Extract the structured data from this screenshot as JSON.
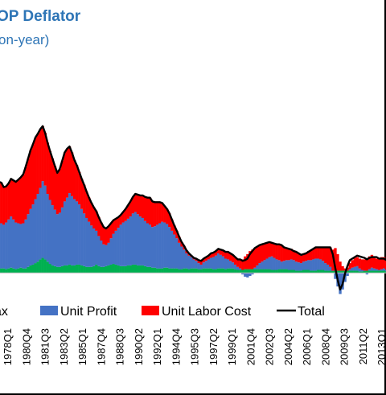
{
  "chart_data": {
    "type": "bar",
    "title": "OP Deflator",
    "subtitle": "on-year)",
    "xlabel": "",
    "ylabel": "",
    "stacked": true,
    "start_quarter": "1977Q1",
    "tick_labels": [
      "1978Q1",
      "1980Q4",
      "1981Q3",
      "1983Q2",
      "1985Q1",
      "1987Q4",
      "1988Q3",
      "1990Q2",
      "1992Q1",
      "1994Q4",
      "1995Q3",
      "1997Q2",
      "1999Q1",
      "2001Q4",
      "2002Q3",
      "2004Q2",
      "2006Q1",
      "2008Q4",
      "2009Q3",
      "2011Q2",
      "2013Q1"
    ],
    "legend": {
      "placement": "bottom",
      "entries": [
        {
          "label": "Tax",
          "color": "#00b050",
          "kind": "bar"
        },
        {
          "label": "Unit Profit",
          "color": "#4472c4",
          "kind": "bar"
        },
        {
          "label": "Unit Labor Cost",
          "color": "#ff0000",
          "kind": "bar"
        },
        {
          "label": "Total",
          "color": "#000000",
          "kind": "line"
        }
      ]
    },
    "series": [
      {
        "name": "Tax",
        "color": "#00b050",
        "values": [
          0.4,
          0.5,
          0.6,
          0.6,
          0.5,
          0.6,
          0.7,
          0.6,
          0.5,
          0.6,
          0.7,
          0.6,
          0.6,
          0.8,
          1.0,
          1.1,
          1.3,
          1.5,
          1.8,
          2.0,
          1.8,
          1.5,
          1.2,
          1.0,
          0.9,
          0.8,
          0.8,
          0.9,
          1.0,
          1.0,
          1.1,
          1.0,
          1.0,
          1.1,
          1.1,
          1.0,
          0.9,
          0.8,
          0.8,
          0.8,
          0.9,
          1.1,
          0.9,
          0.8,
          0.8,
          0.9,
          1.0,
          1.1,
          1.2,
          1.1,
          1.0,
          0.9,
          0.9,
          0.9,
          1.0,
          1.0,
          1.1,
          1.1,
          1.0,
          1.0,
          1.0,
          0.9,
          0.8,
          0.8,
          0.7,
          0.7,
          0.6,
          0.6,
          0.6,
          0.7,
          0.7,
          0.6,
          0.6,
          0.6,
          0.6,
          0.5,
          0.5,
          0.6,
          0.6,
          0.5,
          0.6,
          0.6,
          0.6,
          0.5,
          0.5,
          0.6,
          0.6,
          0.6,
          0.6,
          0.5,
          0.5,
          0.6,
          0.6,
          0.6,
          0.5,
          0.6,
          0.6,
          0.6,
          0.5,
          0.4,
          0.4,
          0.4,
          0.5,
          0.5,
          0.5,
          0.5,
          0.5,
          0.5,
          0.5,
          0.5,
          0.5,
          0.5,
          0.5,
          0.4,
          0.4,
          0.4,
          0.5,
          0.5,
          0.5,
          0.5,
          0.4,
          0.4,
          0.4,
          0.3,
          0.3,
          0.3,
          0.4,
          0.4,
          0.4,
          0.3,
          0.3,
          0.3,
          0.4,
          0.4,
          0.4,
          0.3,
          0.3,
          0.3,
          0.3,
          0.3,
          0.3,
          0.3,
          0.3,
          0.3,
          0.3,
          0.3,
          0.3,
          0.3,
          0.3,
          0.2,
          0.2,
          0.3,
          0.3,
          0.3,
          0.3,
          0.3,
          0.3,
          0.3,
          0.3,
          0.3,
          0.2
        ]
      },
      {
        "name": "Unit Profit",
        "color": "#4472c4",
        "values": [
          5.5,
          5.8,
          6.0,
          5.8,
          6.2,
          6.5,
          6.8,
          6.5,
          6.2,
          6.0,
          5.8,
          6.0,
          6.5,
          7.0,
          7.5,
          8.0,
          8.5,
          9.0,
          9.5,
          10.2,
          9.8,
          9.0,
          8.5,
          8.0,
          7.5,
          7.0,
          7.2,
          7.8,
          8.5,
          9.0,
          9.5,
          9.2,
          8.8,
          8.4,
          8.0,
          7.5,
          7.0,
          6.5,
          6.0,
          5.5,
          5.0,
          4.5,
          4.0,
          3.5,
          3.0,
          2.8,
          3.0,
          3.5,
          4.0,
          4.5,
          5.0,
          5.5,
          5.8,
          6.0,
          6.2,
          6.5,
          6.8,
          7.0,
          6.8,
          6.5,
          6.3,
          6.0,
          5.8,
          5.6,
          5.4,
          5.5,
          5.8,
          6.0,
          6.2,
          6.0,
          5.8,
          5.5,
          5.0,
          4.5,
          4.0,
          3.5,
          3.0,
          2.5,
          2.0,
          1.8,
          1.5,
          1.2,
          1.0,
          0.8,
          0.6,
          0.8,
          1.0,
          1.2,
          1.4,
          1.6,
          1.8,
          2.0,
          1.8,
          1.6,
          1.4,
          1.2,
          1.0,
          0.8,
          0.6,
          0.4,
          0.2,
          -0.2,
          -0.5,
          -0.6,
          -0.4,
          -0.2,
          0.2,
          0.5,
          0.8,
          1.0,
          1.2,
          1.4,
          1.6,
          1.8,
          1.6,
          1.4,
          1.2,
          1.0,
          1.1,
          1.2,
          1.3,
          1.4,
          1.3,
          1.2,
          1.1,
          1.0,
          1.1,
          1.2,
          1.3,
          1.4,
          1.5,
          1.6,
          1.5,
          1.4,
          1.2,
          1.0,
          0.8,
          0.5,
          0.0,
          -0.8,
          -1.8,
          -2.8,
          -2.2,
          -1.2,
          -0.4,
          0.2,
          0.4,
          0.5,
          0.6,
          0.4,
          0.2,
          0.0,
          -0.2,
          0.2,
          0.4,
          0.3,
          0.2,
          0.1,
          0.2,
          0.3,
          0.2
        ]
      },
      {
        "name": "Unit Labor Cost",
        "color": "#ff0000",
        "values": [
          6.0,
          5.8,
          5.4,
          5.0,
          4.8,
          4.8,
          5.0,
          5.2,
          5.4,
          5.8,
          6.2,
          6.5,
          7.0,
          7.4,
          7.8,
          8.0,
          8.2,
          8.0,
          7.8,
          7.3,
          7.0,
          6.8,
          6.5,
          6.2,
          5.8,
          5.5,
          5.8,
          6.2,
          6.5,
          6.5,
          6.2,
          5.8,
          5.2,
          4.8,
          4.3,
          4.0,
          3.8,
          3.5,
          3.2,
          3.0,
          2.8,
          2.6,
          2.5,
          2.4,
          2.3,
          2.2,
          2.2,
          2.0,
          1.8,
          1.6,
          1.4,
          1.3,
          1.4,
          1.6,
          1.8,
          2.0,
          2.2,
          2.4,
          2.6,
          2.8,
          3.0,
          3.2,
          3.4,
          3.6,
          3.4,
          3.2,
          3.0,
          2.8,
          2.5,
          2.2,
          2.0,
          1.8,
          1.5,
          1.2,
          1.0,
          0.8,
          0.6,
          0.5,
          0.4,
          0.3,
          0.2,
          0.2,
          0.3,
          0.4,
          0.5,
          0.5,
          0.5,
          0.5,
          0.6,
          0.6,
          0.6,
          0.6,
          0.7,
          0.8,
          0.9,
          1.0,
          1.0,
          1.0,
          1.0,
          1.0,
          1.2,
          1.4,
          1.7,
          2.0,
          2.4,
          2.6,
          2.6,
          2.5,
          2.4,
          2.3,
          2.2,
          2.1,
          2.0,
          1.8,
          1.9,
          2.0,
          2.1,
          2.2,
          1.8,
          1.6,
          1.5,
          1.4,
          1.3,
          1.2,
          1.1,
          1.0,
          1.0,
          1.1,
          1.2,
          1.3,
          1.4,
          1.5,
          1.6,
          1.7,
          1.9,
          2.1,
          2.4,
          2.6,
          2.8,
          3.0,
          2.2,
          1.2,
          0.6,
          0.3,
          0.4,
          0.8,
          1.0,
          1.2,
          1.2,
          1.3,
          1.4,
          1.5,
          1.6,
          1.7,
          1.7,
          1.5,
          1.4,
          1.5,
          1.6,
          1.5,
          1.4,
          1.3,
          1.2
        ]
      },
      {
        "name": "Total",
        "color": "#000000",
        "values": [
          11.9,
          12.1,
          12.0,
          11.4,
          11.5,
          11.9,
          12.5,
          12.3,
          12.1,
          12.4,
          12.7,
          13.1,
          14.1,
          15.2,
          16.3,
          17.1,
          18.0,
          18.5,
          19.1,
          19.5,
          18.6,
          17.3,
          16.2,
          15.2,
          14.2,
          13.3,
          13.8,
          14.9,
          16.0,
          16.5,
          16.8,
          16.0,
          15.0,
          14.3,
          13.4,
          12.5,
          11.7,
          10.8,
          10.0,
          9.3,
          8.7,
          8.2,
          7.4,
          6.7,
          6.1,
          5.9,
          6.2,
          6.6,
          7.0,
          7.2,
          7.4,
          7.7,
          8.1,
          8.5,
          9.0,
          9.5,
          10.1,
          10.5,
          10.4,
          10.3,
          10.3,
          10.1,
          10.0,
          10.0,
          9.5,
          9.4,
          9.4,
          9.4,
          9.3,
          8.9,
          8.5,
          7.9,
          7.1,
          6.3,
          5.6,
          4.8,
          4.1,
          3.6,
          3.0,
          2.6,
          2.3,
          2.0,
          1.9,
          1.7,
          1.6,
          1.9,
          2.1,
          2.3,
          2.6,
          2.7,
          2.9,
          3.2,
          3.1,
          3.0,
          2.8,
          2.8,
          2.6,
          2.4,
          2.1,
          1.8,
          1.8,
          1.6,
          1.7,
          1.9,
          2.5,
          2.9,
          3.3,
          3.5,
          3.7,
          3.8,
          3.9,
          4.0,
          4.1,
          4.0,
          3.9,
          3.8,
          3.8,
          3.7,
          3.4,
          3.3,
          3.2,
          3.1,
          2.9,
          2.8,
          2.6,
          2.4,
          2.5,
          2.6,
          2.8,
          3.0,
          3.2,
          3.4,
          3.4,
          3.4,
          3.4,
          3.4,
          3.4,
          3.4,
          2.5,
          0.7,
          -0.9,
          -2.2,
          -1.5,
          -0.1,
          0.9,
          1.7,
          1.9,
          2.1,
          2.3,
          2.2,
          2.1,
          2.0,
          1.8,
          2.0,
          2.1,
          2.1,
          2.1,
          1.9,
          1.9,
          1.9,
          1.7
        ]
      }
    ],
    "ylim": [
      -3.5,
      26
    ]
  }
}
